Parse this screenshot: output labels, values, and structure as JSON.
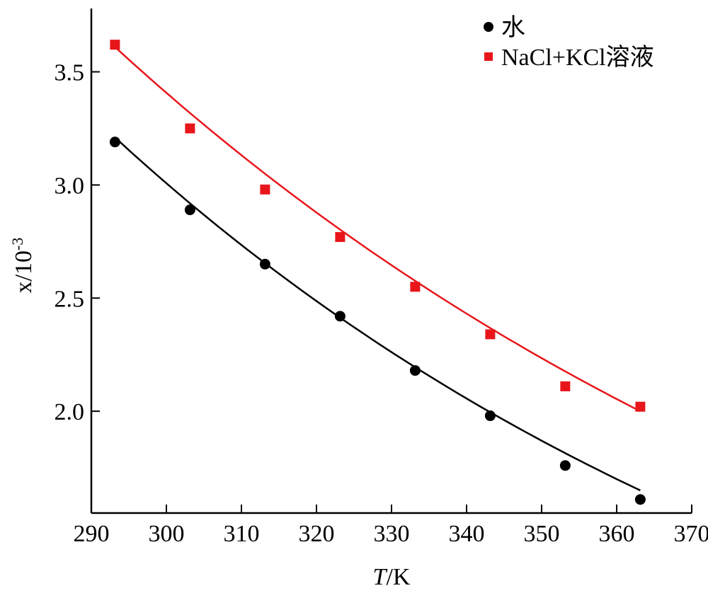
{
  "chart_data": {
    "type": "scatter",
    "xlabel": {
      "italic": "T",
      "rest": "/K"
    },
    "ylabel": {
      "base": "x/10",
      "sup": "-3"
    },
    "xlim": [
      290,
      370
    ],
    "ylim": [
      1.55,
      3.78
    ],
    "xticks": [
      "290",
      "300",
      "310",
      "320",
      "330",
      "340",
      "350",
      "360",
      "370"
    ],
    "yticks": [
      "2.0",
      "2.5",
      "3.0",
      "3.5"
    ],
    "legend_position": "top-right",
    "series": [
      {
        "name": "水",
        "marker": "circle",
        "color": "#000000",
        "points": [
          [
            293.15,
            3.19
          ],
          [
            303.15,
            2.89
          ],
          [
            313.15,
            2.65
          ],
          [
            323.15,
            2.42
          ],
          [
            333.15,
            2.18
          ],
          [
            343.15,
            1.98
          ],
          [
            353.15,
            1.76
          ],
          [
            363.15,
            1.61
          ]
        ],
        "fit": [
          [
            293.15,
            3.21
          ],
          [
            363.15,
            1.65
          ]
        ]
      },
      {
        "name": "NaCl+KCl溶液",
        "marker": "square",
        "color": "#e8161b",
        "points": [
          [
            293.15,
            3.62
          ],
          [
            303.15,
            3.25
          ],
          [
            313.15,
            2.98
          ],
          [
            323.15,
            2.77
          ],
          [
            333.15,
            2.55
          ],
          [
            343.15,
            2.34
          ],
          [
            353.15,
            2.11
          ],
          [
            363.15,
            2.02
          ]
        ],
        "fit": [
          [
            293.15,
            3.61
          ],
          [
            363.15,
            2.0
          ]
        ]
      }
    ]
  }
}
